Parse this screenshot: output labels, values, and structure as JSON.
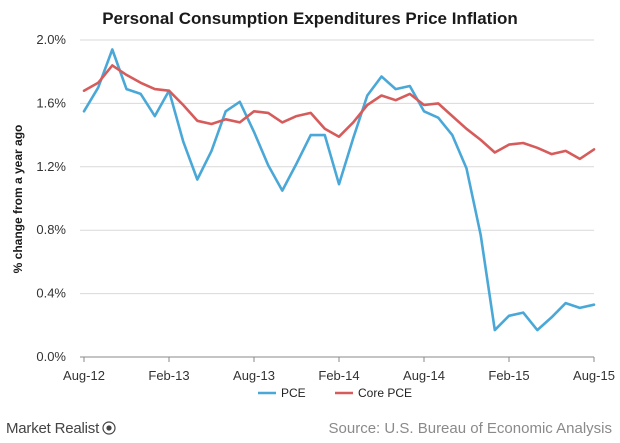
{
  "chart_data": {
    "type": "line",
    "title": "Personal Consumption Expenditures Price Inflation",
    "ylabel": "% change from a year ago",
    "xlabel": "",
    "ylim": [
      0,
      2.0
    ],
    "yticks": [
      0,
      0.4,
      0.8,
      1.2,
      1.6,
      2.0
    ],
    "ytick_labels": [
      "0.0%",
      "0.4%",
      "0.8%",
      "1.2%",
      "1.6%",
      "2.0%"
    ],
    "x": [
      "Aug-12",
      "Sep-12",
      "Oct-12",
      "Nov-12",
      "Dec-12",
      "Jan-13",
      "Feb-13",
      "Mar-13",
      "Apr-13",
      "May-13",
      "Jun-13",
      "Jul-13",
      "Aug-13",
      "Sep-13",
      "Oct-13",
      "Nov-13",
      "Dec-13",
      "Jan-14",
      "Feb-14",
      "Mar-14",
      "Apr-14",
      "May-14",
      "Jun-14",
      "Jul-14",
      "Aug-14",
      "Sep-14",
      "Oct-14",
      "Nov-14",
      "Dec-14",
      "Jan-15",
      "Feb-15",
      "Mar-15",
      "Apr-15",
      "May-15",
      "Jun-15",
      "Jul-15",
      "Aug-15"
    ],
    "xtick_labels": [
      "Aug-12",
      "Feb-13",
      "Aug-13",
      "Feb-14",
      "Aug-14",
      "Feb-15",
      "Aug-15"
    ],
    "grid": true,
    "legend_position": "bottom",
    "series": [
      {
        "name": "PCE",
        "color": "#4aa8d8",
        "values": [
          1.55,
          1.7,
          1.94,
          1.69,
          1.66,
          1.52,
          1.68,
          1.36,
          1.12,
          1.3,
          1.55,
          1.61,
          1.42,
          1.21,
          1.05,
          1.22,
          1.4,
          1.4,
          1.09,
          1.38,
          1.65,
          1.77,
          1.69,
          1.71,
          1.55,
          1.51,
          1.4,
          1.19,
          0.77,
          0.17,
          0.26,
          0.28,
          0.17,
          0.25,
          0.34,
          0.31,
          0.33
        ]
      },
      {
        "name": "Core PCE",
        "color": "#d65c5c",
        "values": [
          1.68,
          1.73,
          1.84,
          1.78,
          1.73,
          1.69,
          1.68,
          1.59,
          1.49,
          1.47,
          1.5,
          1.48,
          1.55,
          1.54,
          1.48,
          1.52,
          1.54,
          1.44,
          1.39,
          1.48,
          1.59,
          1.65,
          1.62,
          1.66,
          1.59,
          1.6,
          1.52,
          1.44,
          1.37,
          1.29,
          1.34,
          1.35,
          1.32,
          1.28,
          1.3,
          1.25,
          1.31
        ]
      }
    ]
  },
  "footer": {
    "brand": "Market Realist",
    "source": "Source: U.S. Bureau of Economic Analysis"
  },
  "colors": {
    "grid": "#d9d9d9",
    "axis": "#888888"
  }
}
